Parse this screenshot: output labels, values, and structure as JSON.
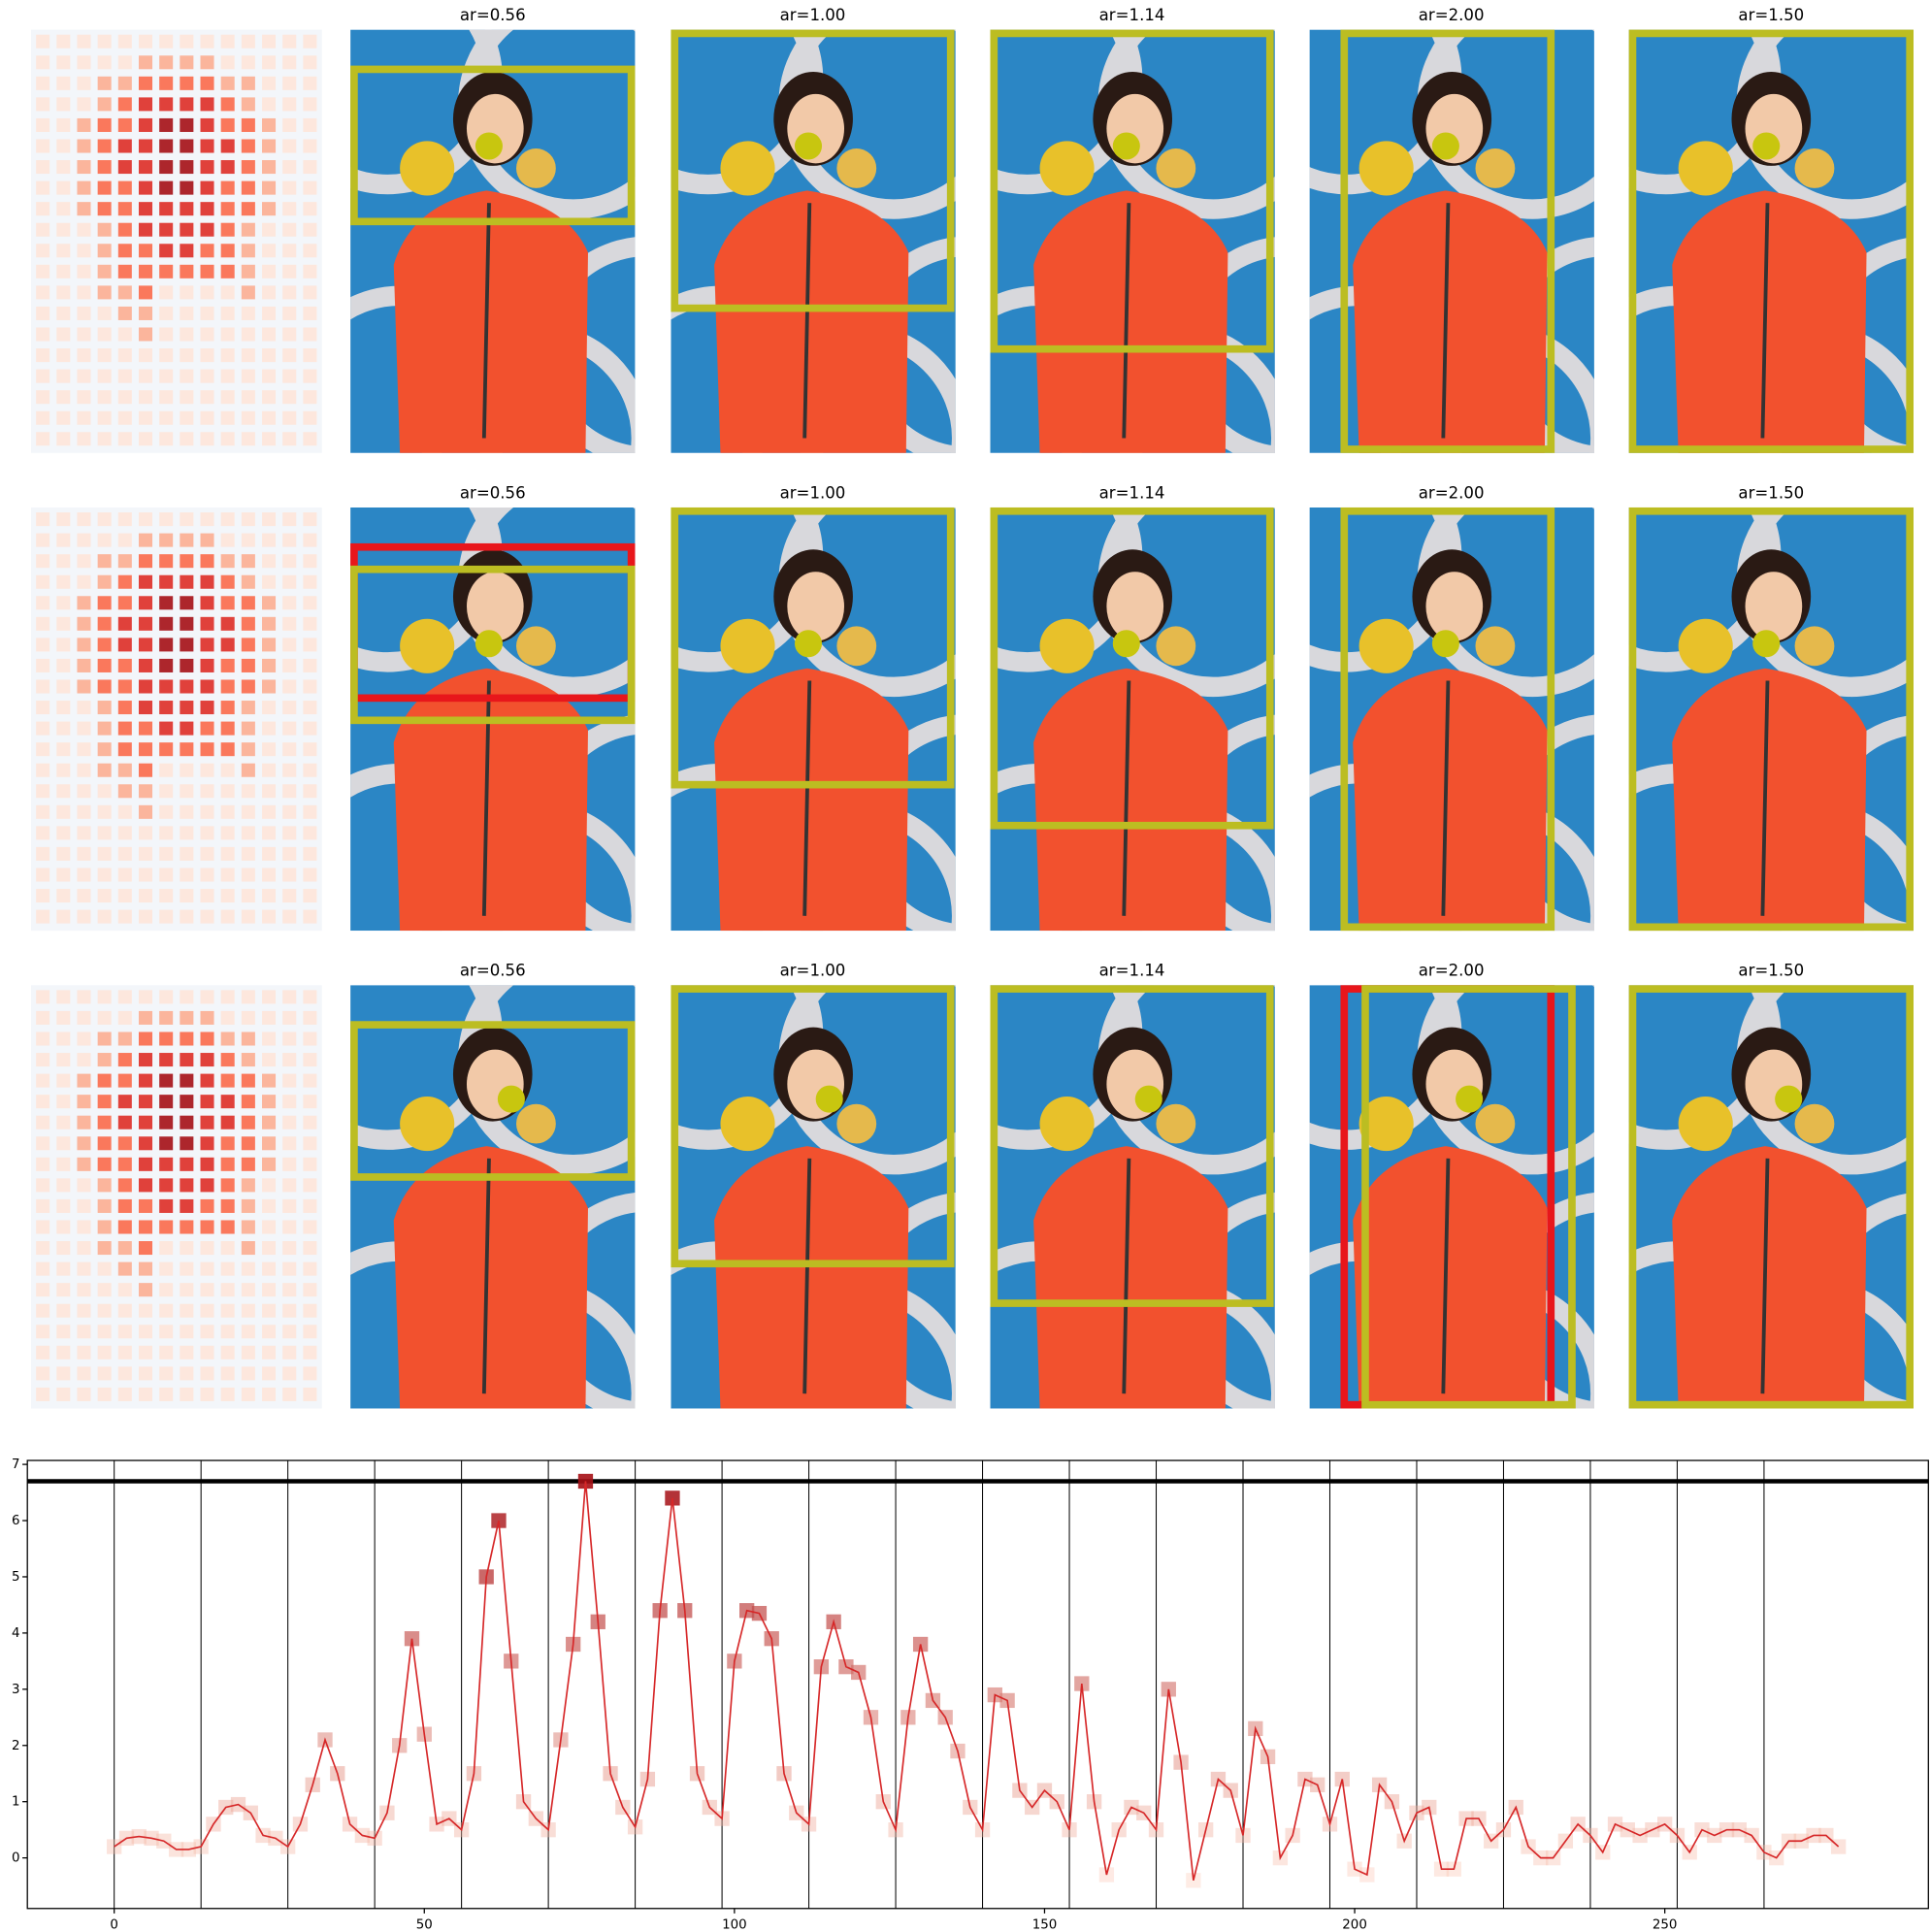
{
  "panels": {
    "titles": [
      [
        "ar=0.56",
        "ar=1.00",
        "ar=1.14",
        "ar=2.00",
        "ar=1.50"
      ],
      [
        "ar=0.56",
        "ar=1.00",
        "ar=1.14",
        "ar=2.00",
        "ar=1.50"
      ],
      [
        "ar=0.56",
        "ar=1.00",
        "ar=1.14",
        "ar=2.00",
        "ar=1.50"
      ]
    ]
  },
  "chart_data": {
    "type": "line",
    "xlim": [
      -14,
      292.5
    ],
    "ylim": [
      -0.9,
      7.07
    ],
    "xticks": [
      0,
      50,
      100,
      150,
      200,
      250
    ],
    "yticks": [
      0,
      1,
      2,
      3,
      4,
      5,
      6,
      7
    ],
    "vlines": [
      0,
      14,
      28,
      42,
      56,
      70,
      84,
      98,
      112,
      126,
      140,
      154,
      168,
      182,
      196,
      210,
      224,
      238,
      252,
      266
    ],
    "hline": 6.7,
    "x": [
      0,
      2,
      4,
      6,
      8,
      10,
      12,
      14,
      16,
      18,
      20,
      22,
      24,
      26,
      28,
      30,
      32,
      34,
      36,
      38,
      40,
      42,
      44,
      46,
      48,
      50,
      52,
      54,
      56,
      58,
      60,
      62,
      64,
      66,
      68,
      70,
      72,
      74,
      76,
      78,
      80,
      82,
      84,
      86,
      88,
      90,
      92,
      94,
      96,
      98,
      100,
      102,
      104,
      106,
      108,
      110,
      112,
      114,
      116,
      118,
      120,
      122,
      124,
      126,
      128,
      130,
      132,
      134,
      136,
      138,
      140,
      142,
      144,
      146,
      148,
      150,
      152,
      154,
      156,
      158,
      160,
      162,
      164,
      166,
      168,
      170,
      172,
      174,
      176,
      178,
      180,
      182,
      184,
      186,
      188,
      190,
      192,
      194,
      196,
      198,
      200,
      202,
      204,
      206,
      208,
      210,
      212,
      214,
      216,
      218,
      220,
      222,
      224,
      226,
      228,
      230,
      232,
      234,
      236,
      238,
      240,
      242,
      244,
      246,
      248,
      250,
      252,
      254,
      256,
      258,
      260,
      262,
      264,
      266,
      268,
      270,
      272,
      274,
      276,
      278
    ],
    "series": [
      {
        "color": "#d62728",
        "values": [
          0.2,
          0.35,
          0.38,
          0.35,
          0.3,
          0.15,
          0.15,
          0.2,
          0.6,
          0.9,
          0.95,
          0.8,
          0.4,
          0.35,
          0.2,
          0.6,
          1.3,
          2.1,
          1.5,
          0.6,
          0.4,
          0.35,
          0.8,
          2.0,
          3.9,
          2.2,
          0.6,
          0.7,
          0.5,
          1.5,
          5.0,
          6.0,
          3.5,
          1.0,
          0.7,
          0.5,
          2.1,
          3.8,
          6.7,
          4.2,
          1.5,
          0.9,
          0.55,
          1.4,
          4.4,
          6.4,
          4.4,
          1.5,
          0.9,
          0.7,
          3.5,
          4.4,
          4.35,
          3.9,
          1.5,
          0.8,
          0.6,
          3.4,
          4.2,
          3.4,
          3.3,
          2.5,
          1.0,
          0.5,
          2.5,
          3.8,
          2.8,
          2.5,
          1.9,
          0.9,
          0.5,
          2.9,
          2.8,
          1.2,
          0.9,
          1.2,
          1.0,
          0.5,
          3.1,
          1.0,
          -0.3,
          0.5,
          0.9,
          0.8,
          0.5,
          3.0,
          1.7,
          -0.4,
          0.5,
          1.4,
          1.2,
          0.4,
          2.3,
          1.8,
          0.0,
          0.4,
          1.4,
          1.3,
          0.6,
          1.4,
          -0.2,
          -0.3,
          1.3,
          1.0,
          0.3,
          0.8,
          0.9,
          -0.2,
          -0.2,
          0.7,
          0.7,
          0.3,
          0.5,
          0.9,
          0.2,
          0.0,
          0.0,
          0.3,
          0.6,
          0.4,
          0.1,
          0.6,
          0.5,
          0.4,
          0.5,
          0.6,
          0.4,
          0.1,
          0.5,
          0.4,
          0.5,
          0.5,
          0.4,
          0.1,
          0.0,
          0.3,
          0.3,
          0.4,
          0.4,
          0.2
        ]
      }
    ]
  }
}
